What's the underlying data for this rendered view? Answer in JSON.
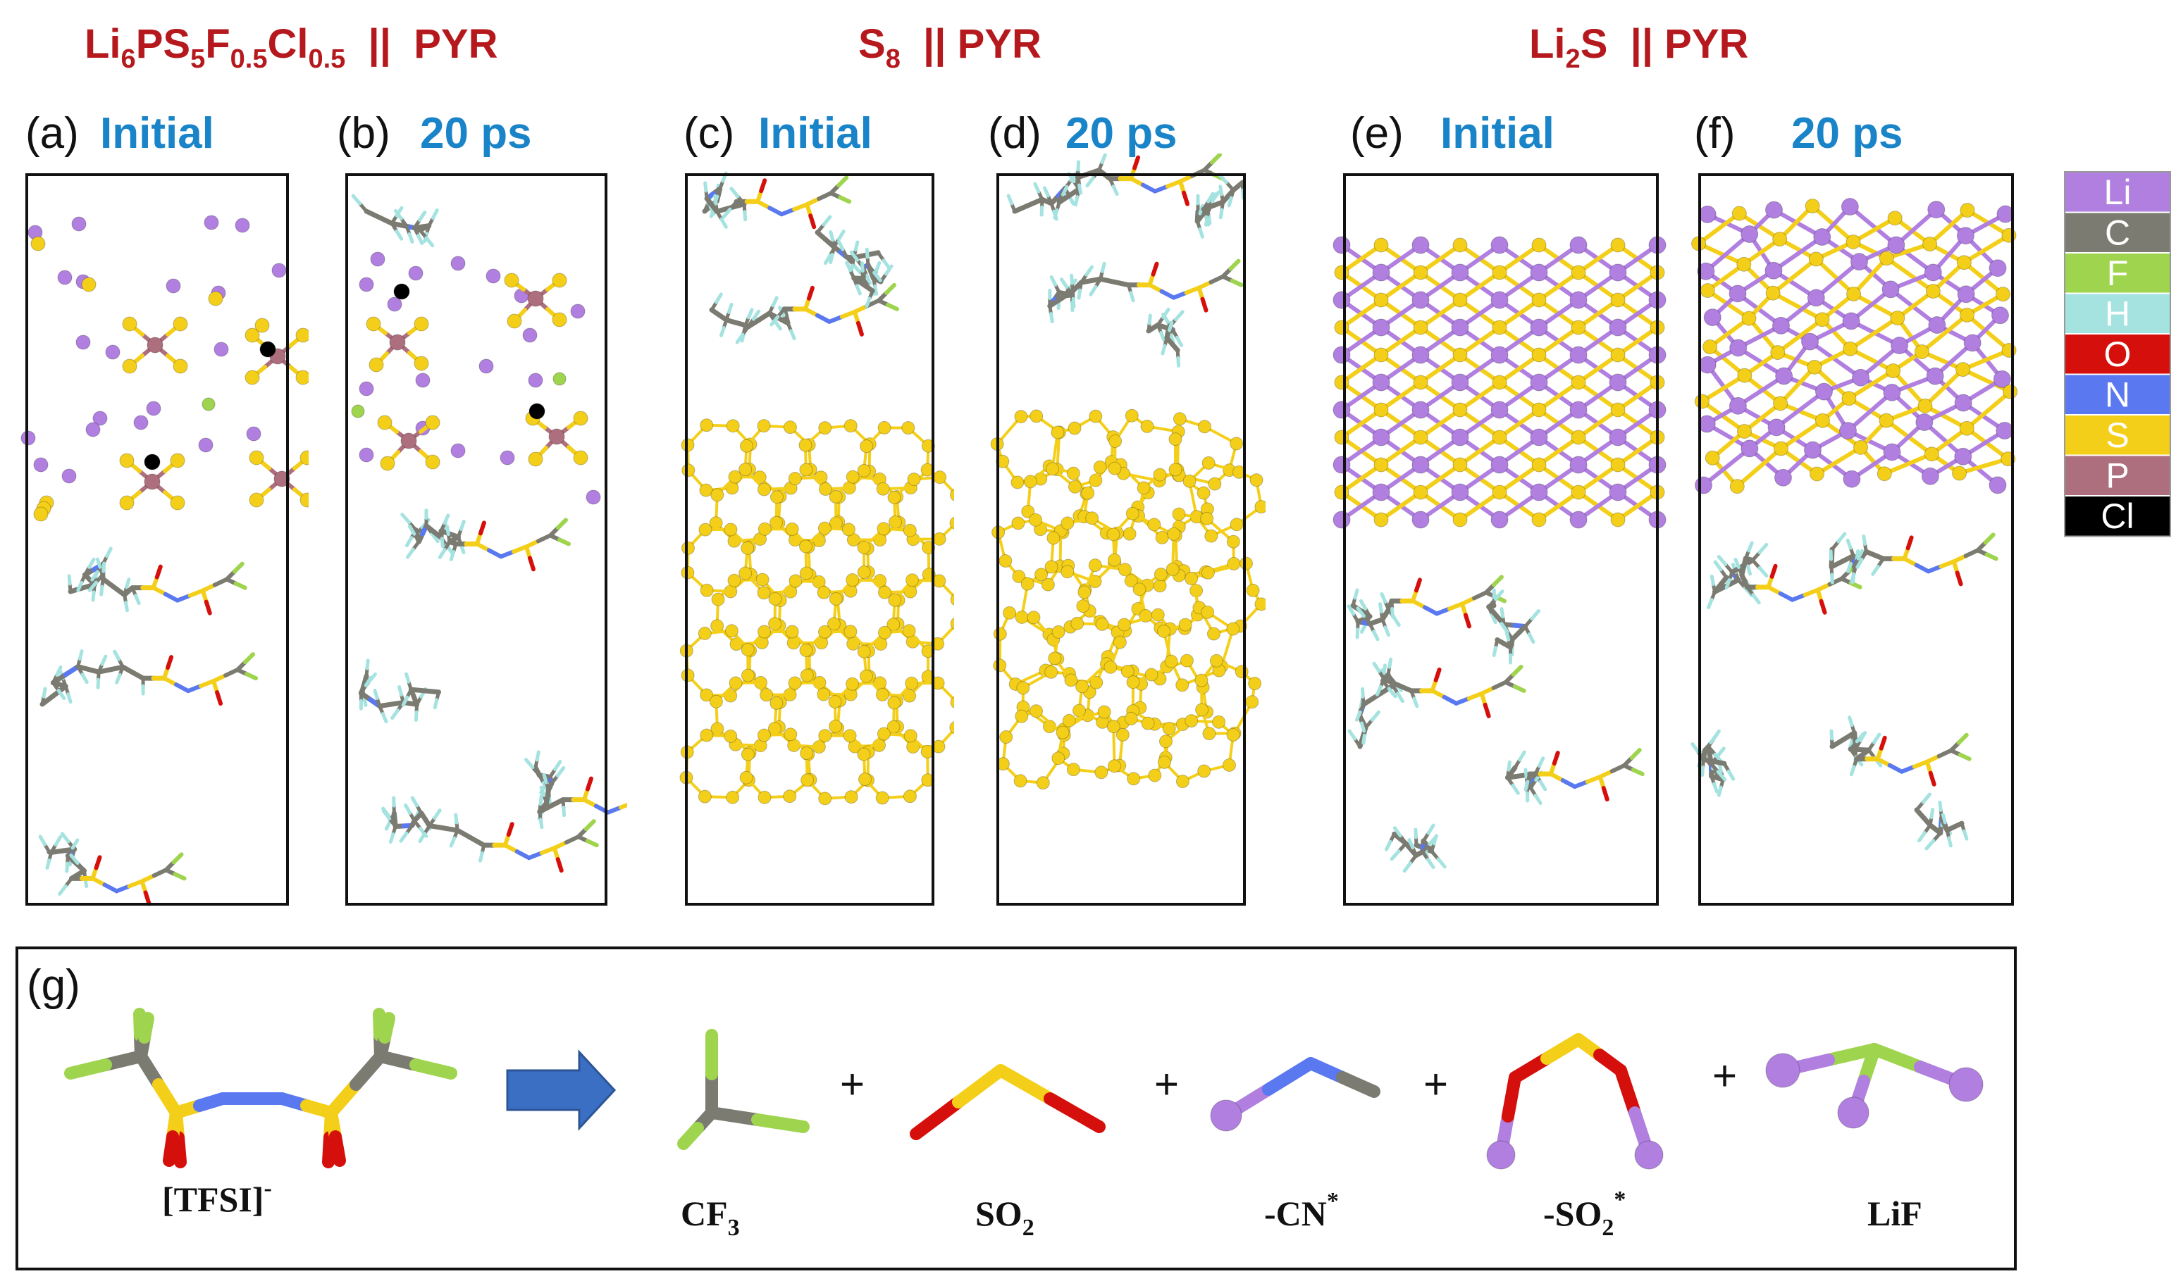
{
  "systems": [
    {
      "id": "lpsfc",
      "base": "Li",
      "sub1": "6",
      "mid1": "PS",
      "sub2": "5",
      "mid2": "F",
      "sub3": "0.5",
      "mid3": "Cl",
      "sub4": "0.5",
      "suffix": "  ||  PYR"
    },
    {
      "id": "s8",
      "base": "S",
      "sub1": "8",
      "suffix": "  || PYR"
    },
    {
      "id": "li2s",
      "base": "Li",
      "sub1": "2",
      "mid1": "S",
      "suffix": "  || PYR"
    }
  ],
  "panels": [
    {
      "letter": "(a)",
      "state": "Initial"
    },
    {
      "letter": "(b)",
      "state": "20 ps"
    },
    {
      "letter": "(c)",
      "state": "Initial"
    },
    {
      "letter": "(d)",
      "state": "20 ps"
    },
    {
      "letter": "(e)",
      "state": "Initial"
    },
    {
      "letter": "(f)",
      "state": "20 ps"
    }
  ],
  "legend": [
    {
      "label": "Li",
      "color": "#b07fe0"
    },
    {
      "label": "C",
      "color": "#7b7b72"
    },
    {
      "label": "F",
      "color": "#9fd44e"
    },
    {
      "label": "H",
      "color": "#a5e3e0"
    },
    {
      "label": "O",
      "color": "#d50f0b"
    },
    {
      "label": "N",
      "color": "#5a78f0"
    },
    {
      "label": "S",
      "color": "#f4cf1a"
    },
    {
      "label": "P",
      "color": "#ad6f7d"
    },
    {
      "label": "Cl",
      "color": "#000000"
    }
  ],
  "decomposition": {
    "letter": "(g)",
    "reactant": {
      "main": "[TFSI]",
      "sup": "-"
    },
    "products": [
      {
        "main": "CF",
        "sub": "3",
        "sup": ""
      },
      {
        "main": "SO",
        "sub": "2",
        "sup": ""
      },
      {
        "main": "-CN",
        "sub": "",
        "sup": "*"
      },
      {
        "main": "-SO",
        "sub": "2",
        "sup": "*"
      },
      {
        "main": "LiF",
        "sub": "",
        "sup": ""
      }
    ],
    "plus": "+"
  },
  "colors": {
    "title": "#b5191e",
    "state": "#1a84c8",
    "arrow": "#3b6fc4"
  }
}
